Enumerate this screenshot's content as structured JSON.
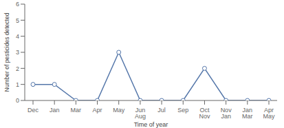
{
  "chart_data": {
    "type": "line",
    "categories": [
      "Dec",
      "Jan",
      "Mar",
      "Apr",
      "May",
      "Jun\nAug",
      "Jul",
      "Sep",
      "Oct\nNov",
      "Nov\nJan",
      "Jan\nMar",
      "Apr\nMay"
    ],
    "values": [
      1,
      1,
      0,
      0,
      3,
      0,
      0,
      0,
      2,
      0,
      0,
      0
    ],
    "xlabel": "Time of year",
    "ylabel": "Number of pesticides detected",
    "ylim": [
      0,
      6
    ],
    "yticks": [
      0,
      1,
      2,
      3,
      4,
      5,
      6
    ],
    "color": "#5577aa",
    "marker": "circle",
    "grid": false
  }
}
